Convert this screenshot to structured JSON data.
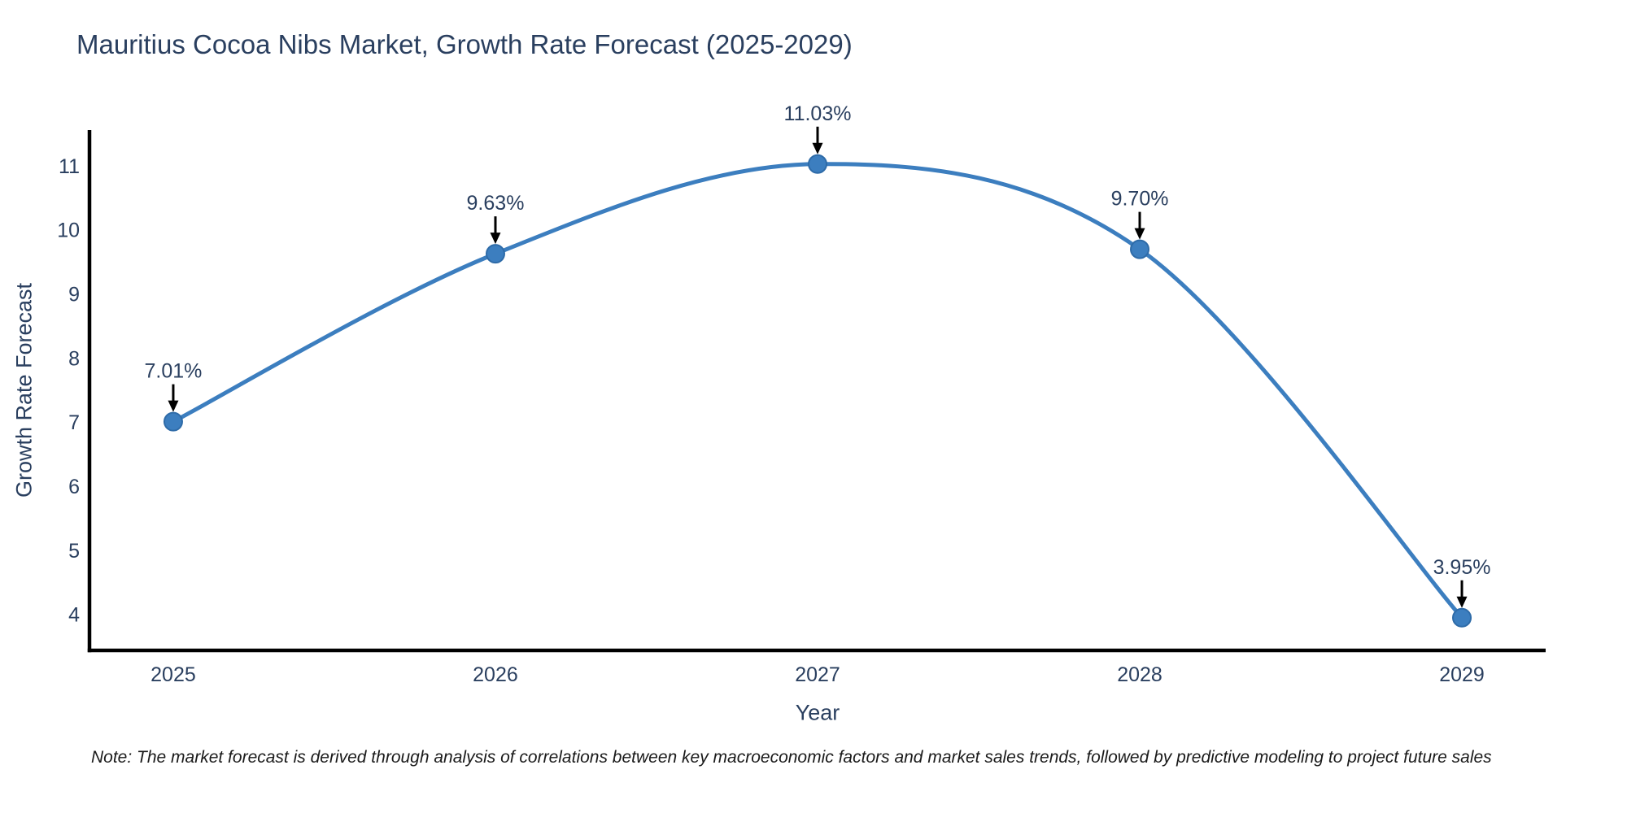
{
  "chart": {
    "title": "Mauritius Cocoa Nibs Market, Growth Rate Forecast (2025-2029)",
    "xlabel": "Year",
    "ylabel": "Growth Rate Forecast",
    "note": "Note: The market forecast is derived through analysis of correlations between key macroeconomic factors and market sales trends, followed by predictive modeling to project future sales"
  },
  "chart_data": {
    "type": "line",
    "line_shape": "spline",
    "x": [
      2025,
      2026,
      2027,
      2028,
      2029
    ],
    "series": [
      {
        "name": "Growth Rate Forecast",
        "values": [
          7.01,
          9.63,
          11.03,
          9.7,
          3.95
        ]
      }
    ],
    "point_labels": [
      "7.01%",
      "9.63%",
      "11.03%",
      "9.70%",
      "3.95%"
    ],
    "title": "Mauritius Cocoa Nibs Market, Growth Rate Forecast (2025-2029)",
    "xlabel": "Year",
    "ylabel": "Growth Rate Forecast",
    "x_ticks": [
      "2025",
      "2026",
      "2027",
      "2028",
      "2029"
    ],
    "y_ticks": [
      4,
      5,
      6,
      7,
      8,
      9,
      10,
      11
    ],
    "xlim": [
      2024.74,
      2029.26
    ],
    "ylim": [
      3.44,
      11.56
    ],
    "grid": false,
    "legend": "none",
    "colors": {
      "line": "#3c7ebf",
      "marker_fill": "#3c7ebf",
      "marker_edge": "#2e6ba8",
      "axis_line": "#000000",
      "tick_text": "#2a3f5f",
      "annotation_text": "#2a3f5f",
      "arrow": "#000000",
      "background": "#ffffff"
    }
  }
}
